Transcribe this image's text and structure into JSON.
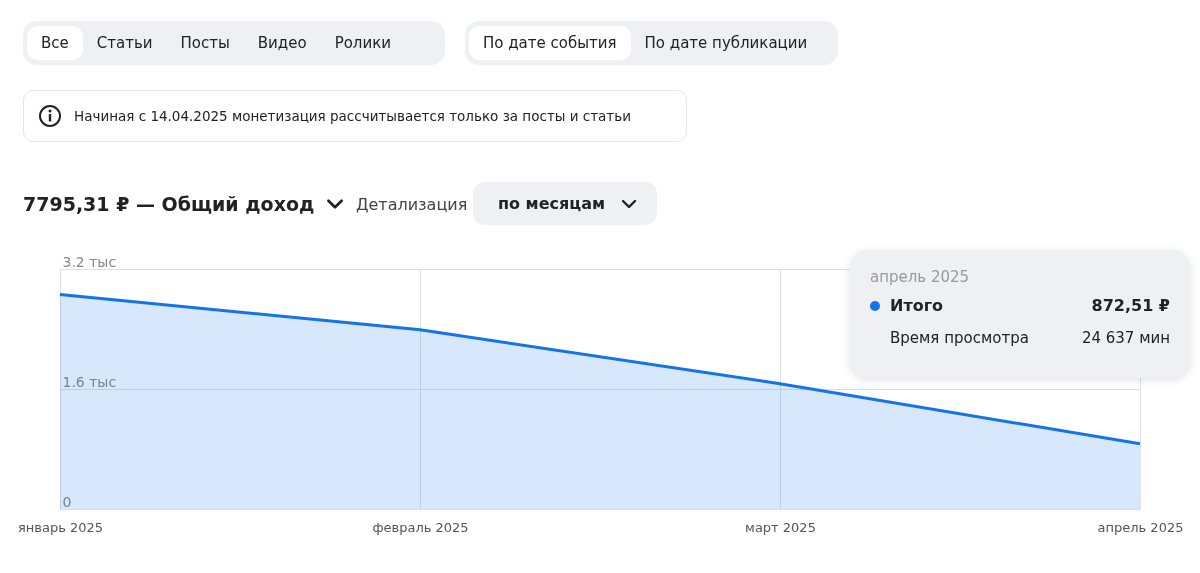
{
  "chart_data": {
    "type": "area",
    "title": "7795,31 ₽ — Общий доход",
    "categories": [
      "январь 2025",
      "февраль 2025",
      "март 2025",
      "апрель 2025"
    ],
    "series": [
      {
        "name": "Итого",
        "color": "#1273eb",
        "values": [
          2.86,
          2.39,
          1.67,
          0.87
        ]
      }
    ],
    "ylim": [
      0,
      3.2
    ],
    "yticks": [
      0,
      {
        "value": 1.6,
        "label": "1.6 тыс"
      },
      {
        "value": 3.2,
        "label": "3.2 тыс"
      }
    ],
    "grid": true,
    "annotations": [
      "Все",
      "Статьи",
      "Посты",
      "Видео",
      "Ролики",
      "По дате события",
      "По дате публикации",
      "Начиная с 14.04.2025 монетизация рассчитывается только за посты и статьи",
      "Детализация",
      "по месяцам",
      "апрель 2025",
      "872,51 ₽",
      "Время просмотра",
      "24 637 мин"
    ]
  }
}
